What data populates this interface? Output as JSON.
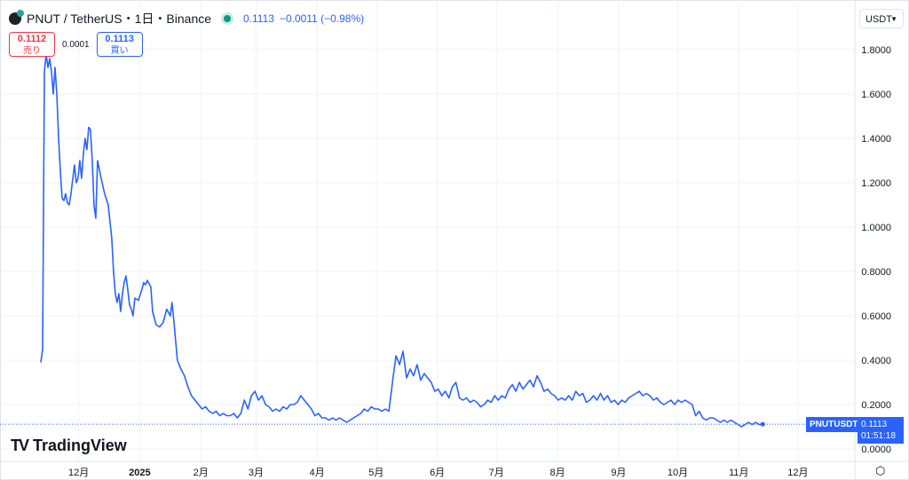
{
  "header": {
    "symbol": "PNUT / TetherUS・1日・Binance",
    "last": "0.1113",
    "change": "−0.0011 (−0.98%)"
  },
  "trade": {
    "sell_price": "0.1112",
    "sell_label": "売り",
    "spread": "0.0001",
    "buy_price": "0.1113",
    "buy_label": "買い"
  },
  "currency": "USDT",
  "price_tag": {
    "symbol": "PNUTUSDT",
    "price": "0.1113",
    "countdown": "01:51:18"
  },
  "logo": "TradingView",
  "colors": {
    "line": "#2962ff",
    "grid": "#f0f3fa",
    "accent": "#2962ff"
  },
  "chart_data": {
    "type": "line",
    "title": "PNUT / TetherUS 1D Binance",
    "xlabel": "",
    "ylabel": "USDT",
    "x_unit": "days since 2024-11-01",
    "xlim": [
      0,
      420
    ],
    "ylim": [
      -0.04,
      1.9
    ],
    "y_ticks": [
      "0.0000",
      "0.2000",
      "0.4000",
      "0.6000",
      "0.8000",
      "1.0000",
      "1.2000",
      "1.4000",
      "1.6000",
      "1.8000"
    ],
    "y_tick_values": [
      0,
      0.2,
      0.4,
      0.6,
      0.8,
      1.0,
      1.2,
      1.4,
      1.6,
      1.8
    ],
    "x_ticks": [
      "12月",
      "2025",
      "2月",
      "3月",
      "4月",
      "5月",
      "6月",
      "7月",
      "8月",
      "9月",
      "10月",
      "11月",
      "12月"
    ],
    "x_tick_days": [
      30,
      61,
      92,
      120,
      151,
      181,
      212,
      242,
      273,
      304,
      334,
      365,
      395
    ],
    "grid": true,
    "last_value": 0.1113,
    "series": [
      {
        "name": "PNUTUSDT",
        "early_points": [
          [
            10.8,
            0.39
          ],
          [
            11.7,
            0.45
          ],
          [
            12.6,
            1.7
          ],
          [
            13.5,
            1.78
          ],
          [
            14.4,
            1.72
          ],
          [
            15.3,
            1.76
          ],
          [
            16.2,
            1.7
          ],
          [
            17.1,
            1.6
          ],
          [
            18,
            1.72
          ],
          [
            18.9,
            1.6
          ],
          [
            19.8,
            1.4
          ],
          [
            20.7,
            1.25
          ],
          [
            21.6,
            1.13
          ],
          [
            22.5,
            1.12
          ],
          [
            23.4,
            1.15
          ],
          [
            24.3,
            1.11
          ],
          [
            25.2,
            1.1
          ],
          [
            26.1,
            1.15
          ],
          [
            27.9,
            1.28
          ],
          [
            28.8,
            1.2
          ],
          [
            29.7,
            1.22
          ],
          [
            30.6,
            1.3
          ],
          [
            31.5,
            1.22
          ],
          [
            32.4,
            1.33
          ],
          [
            33.3,
            1.4
          ],
          [
            34.2,
            1.35
          ],
          [
            35.1,
            1.45
          ],
          [
            36,
            1.44
          ],
          [
            36.9,
            1.3
          ],
          [
            37.8,
            1.1
          ],
          [
            38.7,
            1.04
          ],
          [
            39.6,
            1.3
          ],
          [
            40.5,
            1.26
          ],
          [
            41.4,
            1.22
          ],
          [
            43.2,
            1.15
          ],
          [
            45,
            1.1
          ],
          [
            46.8,
            0.95
          ],
          [
            47.7,
            0.8
          ],
          [
            48.6,
            0.7
          ],
          [
            49.5,
            0.66
          ],
          [
            50.4,
            0.7
          ],
          [
            51.3,
            0.62
          ],
          [
            52.2,
            0.7
          ],
          [
            53.1,
            0.75
          ],
          [
            54,
            0.78
          ],
          [
            54.9,
            0.72
          ],
          [
            55.8,
            0.65
          ],
          [
            56.7,
            0.63
          ],
          [
            57.6,
            0.6
          ],
          [
            58.5,
            0.68
          ],
          [
            60.3,
            0.67
          ],
          [
            62.1,
            0.72
          ],
          [
            63,
            0.75
          ],
          [
            63.9,
            0.74
          ],
          [
            64.8,
            0.76
          ],
          [
            66.6,
            0.73
          ],
          [
            67.5,
            0.62
          ],
          [
            69.3,
            0.56
          ],
          [
            71.1,
            0.55
          ],
          [
            72.9,
            0.57
          ],
          [
            74.7,
            0.63
          ],
          [
            76.5,
            0.6
          ],
          [
            77.4,
            0.66
          ],
          [
            78.3,
            0.58
          ]
        ],
        "regular_from_day": 80.1,
        "regular_to_day": 377.1,
        "regular_values": [
          0.4,
          0.36,
          0.33,
          0.28,
          0.24,
          0.22,
          0.2,
          0.18,
          0.19,
          0.17,
          0.16,
          0.17,
          0.15,
          0.16,
          0.15,
          0.15,
          0.16,
          0.14,
          0.16,
          0.22,
          0.18,
          0.24,
          0.26,
          0.22,
          0.24,
          0.2,
          0.19,
          0.17,
          0.18,
          0.17,
          0.19,
          0.18,
          0.2,
          0.2,
          0.21,
          0.24,
          0.22,
          0.2,
          0.18,
          0.15,
          0.16,
          0.14,
          0.14,
          0.13,
          0.14,
          0.13,
          0.14,
          0.13,
          0.12,
          0.13,
          0.14,
          0.15,
          0.16,
          0.18,
          0.17,
          0.19,
          0.18,
          0.18,
          0.17,
          0.18,
          0.17,
          0.3,
          0.42,
          0.38,
          0.44,
          0.32,
          0.36,
          0.33,
          0.38,
          0.31,
          0.34,
          0.32,
          0.3,
          0.26,
          0.27,
          0.24,
          0.26,
          0.23,
          0.28,
          0.3,
          0.23,
          0.22,
          0.23,
          0.21,
          0.22,
          0.21,
          0.19,
          0.2,
          0.22,
          0.21,
          0.24,
          0.22,
          0.24,
          0.23,
          0.27,
          0.29,
          0.26,
          0.3,
          0.27,
          0.29,
          0.31,
          0.28,
          0.33,
          0.3,
          0.26,
          0.27,
          0.25,
          0.24,
          0.22,
          0.23,
          0.22,
          0.24,
          0.22,
          0.26,
          0.24,
          0.25,
          0.21,
          0.22,
          0.24,
          0.22,
          0.25,
          0.22,
          0.24,
          0.21,
          0.22,
          0.2,
          0.22,
          0.21,
          0.23,
          0.24,
          0.25,
          0.26,
          0.24,
          0.25,
          0.24,
          0.22,
          0.23,
          0.21,
          0.2,
          0.21,
          0.22,
          0.2,
          0.22,
          0.21,
          0.22,
          0.21,
          0.2,
          0.15,
          0.17,
          0.14,
          0.13,
          0.14,
          0.14,
          0.13,
          0.12,
          0.13,
          0.12,
          0.13,
          0.12,
          0.11,
          0.1,
          0.11,
          0.12,
          0.11,
          0.12,
          0.11,
          0.1113
        ]
      }
    ]
  }
}
